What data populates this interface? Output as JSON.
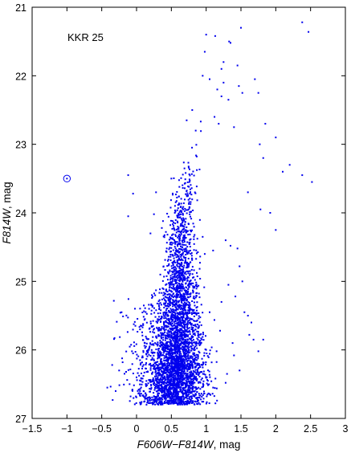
{
  "chart_data": {
    "type": "scatter",
    "title": "",
    "annotation": "KKR 25",
    "xlabel_italic": "F606W−F814W",
    "xlabel_unit": ", mag",
    "ylabel_italic": "F814W",
    "ylabel_unit": ", mag",
    "xlim": [
      -1.5,
      3
    ],
    "ylim": [
      27,
      21
    ],
    "y_inverted": true,
    "xticks": [
      -1.5,
      -1,
      -0.5,
      0,
      0.5,
      1,
      1.5,
      2,
      2.5,
      3
    ],
    "xtick_labels": [
      "−1.5",
      "−1",
      "−0.5",
      "0",
      "0.5",
      "1",
      "1.5",
      "2",
      "2.5",
      "3"
    ],
    "yticks": [
      21,
      22,
      23,
      24,
      25,
      26,
      27
    ],
    "ytick_labels": [
      "21",
      "22",
      "23",
      "24",
      "25",
      "26",
      "27"
    ],
    "grid": false,
    "marker_color": "#0000ee",
    "highlighted_point": {
      "x": -1.0,
      "y": 23.5,
      "marker": "circle-dot"
    },
    "sparse_points": [
      [
        1.0,
        21.4
      ],
      [
        1.13,
        21.42
      ],
      [
        1.33,
        21.5
      ],
      [
        1.5,
        21.3
      ],
      [
        2.38,
        21.22
      ],
      [
        2.47,
        21.36
      ],
      [
        1.35,
        21.52
      ],
      [
        0.98,
        21.65
      ],
      [
        1.25,
        21.8
      ],
      [
        1.45,
        21.85
      ],
      [
        1.22,
        21.9
      ],
      [
        0.95,
        22.0
      ],
      [
        1.05,
        22.05
      ],
      [
        1.16,
        22.2
      ],
      [
        1.25,
        22.1
      ],
      [
        1.47,
        22.15
      ],
      [
        1.7,
        22.05
      ],
      [
        1.52,
        22.25
      ],
      [
        1.22,
        22.3
      ],
      [
        1.75,
        22.25
      ],
      [
        1.32,
        22.35
      ],
      [
        1.12,
        22.6
      ],
      [
        1.18,
        22.7
      ],
      [
        1.4,
        22.75
      ],
      [
        1.85,
        22.7
      ],
      [
        2.0,
        22.9
      ],
      [
        1.77,
        23.0
      ],
      [
        2.2,
        23.3
      ],
      [
        2.1,
        23.4
      ],
      [
        2.38,
        23.45
      ],
      [
        2.52,
        23.55
      ],
      [
        1.82,
        23.2
      ],
      [
        1.6,
        23.7
      ],
      [
        1.78,
        23.95
      ],
      [
        2.0,
        24.25
      ],
      [
        1.92,
        24.0
      ],
      [
        0.85,
        22.8
      ],
      [
        0.72,
        22.65
      ],
      [
        0.8,
        22.5
      ],
      [
        -0.12,
        23.45
      ],
      [
        0.5,
        23.5
      ],
      [
        -0.05,
        23.72
      ],
      [
        0.28,
        23.7
      ],
      [
        0.25,
        24.02
      ],
      [
        -0.12,
        24.05
      ],
      [
        0.38,
        24.12
      ],
      [
        0.55,
        24.0
      ],
      [
        0.2,
        24.3
      ],
      [
        0.62,
        24.45
      ],
      [
        0.95,
        24.35
      ],
      [
        1.1,
        24.55
      ],
      [
        1.28,
        24.4
      ],
      [
        1.35,
        24.48
      ],
      [
        1.45,
        24.52
      ],
      [
        0.45,
        24.7
      ],
      [
        0.98,
        24.6
      ],
      [
        1.48,
        24.78
      ],
      [
        1.52,
        25.0
      ],
      [
        1.42,
        25.22
      ],
      [
        1.05,
        25.45
      ],
      [
        1.55,
        25.45
      ],
      [
        1.62,
        25.78
      ],
      [
        1.65,
        25.6
      ],
      [
        1.68,
        25.85
      ],
      [
        1.38,
        25.9
      ],
      [
        1.2,
        25.72
      ],
      [
        1.15,
        26.02
      ],
      [
        1.4,
        26.08
      ],
      [
        1.75,
        26.02
      ],
      [
        1.82,
        25.85
      ],
      [
        1.48,
        26.3
      ],
      [
        1.3,
        26.35
      ],
      [
        1.28,
        26.48
      ],
      [
        1.1,
        26.55
      ],
      [
        0.05,
        26.6
      ],
      [
        -0.25,
        26.3
      ],
      [
        -0.35,
        26.22
      ],
      [
        -0.2,
        26.18
      ],
      [
        -0.1,
        26.5
      ],
      [
        -0.05,
        26.05
      ],
      [
        0.05,
        26.15
      ],
      [
        -0.42,
        26.55
      ],
      [
        -0.3,
        26.6
      ],
      [
        0.0,
        26.4
      ],
      [
        0.1,
        26.6
      ],
      [
        -0.15,
        26.32
      ],
      [
        0.12,
        25.9
      ],
      [
        0.05,
        25.7
      ],
      [
        0.18,
        25.4
      ],
      [
        0.12,
        25.55
      ],
      [
        0.22,
        25.2
      ],
      [
        1.32,
        25.05
      ],
      [
        1.22,
        25.3
      ],
      [
        1.6,
        25.5
      ]
    ],
    "population": {
      "n_points": 3600,
      "rgb_tip": {
        "x_at_22_4": 1.0,
        "x_at_23_0": 0.82,
        "x_at_24_0": 0.65,
        "x_at_25_0": 0.62,
        "x_at_26_0": 0.6
      },
      "faint_limit": 26.8,
      "spread_bright": 0.06,
      "spread_faint": 0.22
    }
  }
}
